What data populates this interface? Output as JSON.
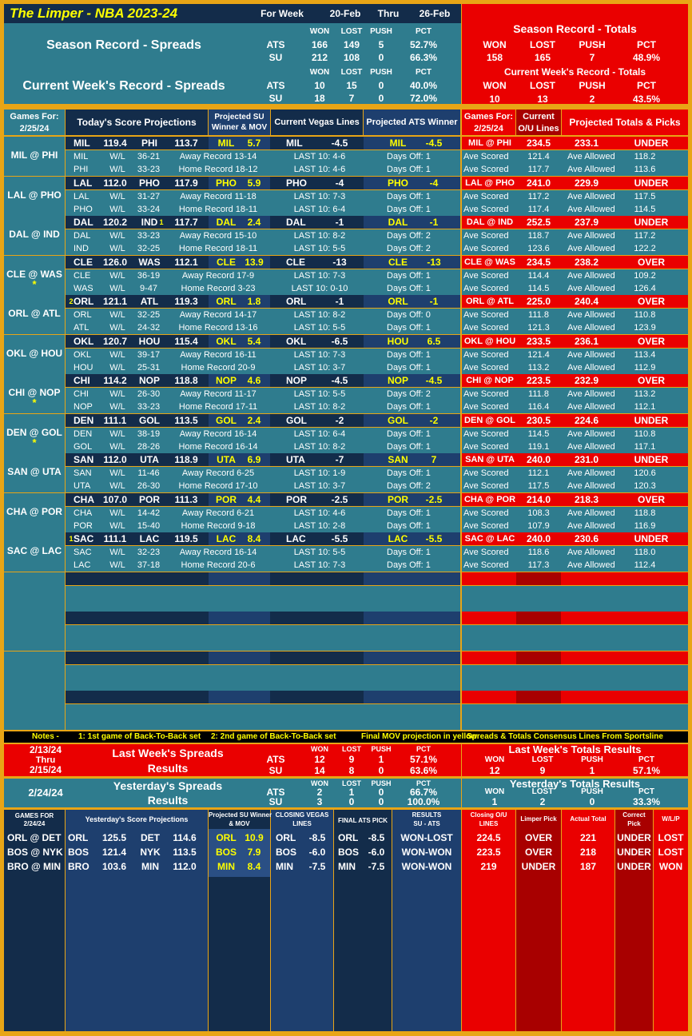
{
  "header": {
    "title": "The Limper - NBA 2023-24",
    "for_week": "For Week",
    "start": "20-Feb",
    "thru": "Thru",
    "end": "26-Feb"
  },
  "season": {
    "title": "Season Record - Spreads",
    "cols": [
      "WON",
      "LOST",
      "PUSH",
      "PCT"
    ],
    "ats": {
      "label": "ATS",
      "won": "166",
      "lost": "149",
      "push": "5",
      "pct": "52.7%"
    },
    "su": {
      "label": "SU",
      "won": "212",
      "lost": "108",
      "push": "0",
      "pct": "66.3%"
    }
  },
  "current_week": {
    "title": "Current Week's Record - Spreads",
    "cols": [
      "WON",
      "LOST",
      "PUSH",
      "PCT"
    ],
    "ats": {
      "label": "ATS",
      "won": "10",
      "lost": "15",
      "push": "0",
      "pct": "40.0%"
    },
    "su": {
      "label": "SU",
      "won": "18",
      "lost": "7",
      "push": "0",
      "pct": "72.0%"
    }
  },
  "season_totals": {
    "title": "Season Record - Totals",
    "cols": [
      "WON",
      "LOST",
      "PUSH",
      "PCT"
    ],
    "won": "158",
    "lost": "165",
    "push": "7",
    "pct": "48.9%"
  },
  "week_totals": {
    "title": "Current Week's Record - Totals",
    "cols": [
      "WON",
      "LOST",
      "PUSH",
      "PCT"
    ],
    "won": "10",
    "lost": "13",
    "push": "2",
    "pct": "43.5%"
  },
  "col_headers": {
    "games_for": "Games For:",
    "date": "2/25/24",
    "projections": "Today's Score Projections",
    "su_winner_1": "Projected SU",
    "su_winner_2": "Winner & MOV",
    "vegas": "Current Vegas Lines",
    "ats_winner": "Projected ATS Winner",
    "games_for2": "Games For:",
    "date2": "2/25/24",
    "ou_1": "Current",
    "ou_2": "O/U Lines",
    "totals": "Projected Totals & Picks"
  },
  "wl": "W/L",
  "ave_scored": "Ave Scored",
  "ave_allowed": "Ave Allowed",
  "games": [
    {
      "matchup": "MIL @ PHI",
      "star": "",
      "away": "MIL",
      "away_score": "119.4",
      "home": "PHI",
      "home_score": "113.7",
      "away_mark": "",
      "home_mark": "",
      "su_team": "MIL",
      "su_mov": "5.7",
      "vegas_team": "MIL",
      "vegas_line": "-4.5",
      "ats_team": "MIL",
      "ats_line": "-4.5",
      "ou_matchup": "MIL @ PHI",
      "ou_line": "234.5",
      "proj_total": "233.1",
      "pick": "UNDER",
      "away_wl": "36-21",
      "away_rec": "Away Record 13-14",
      "away_last10": "LAST 10: 4-6",
      "away_off": "Days Off: 1",
      "away_scored": "121.4",
      "away_allowed": "118.2",
      "home_wl": "33-23",
      "home_rec": "Home Record 18-12",
      "home_last10": "LAST 10: 4-6",
      "home_off": "Days Off: 1",
      "home_scored": "117.7",
      "home_allowed": "113.6"
    },
    {
      "matchup": "LAL @ PHO",
      "star": "",
      "away": "LAL",
      "away_score": "112.0",
      "home": "PHO",
      "home_score": "117.9",
      "away_mark": "",
      "home_mark": "",
      "su_team": "PHO",
      "su_mov": "5.9",
      "vegas_team": "PHO",
      "vegas_line": "-4",
      "ats_team": "PHO",
      "ats_line": "-4",
      "ou_matchup": "LAL @ PHO",
      "ou_line": "241.0",
      "proj_total": "229.9",
      "pick": "UNDER",
      "away_wl": "31-27",
      "away_rec": "Away Record 11-18",
      "away_last10": "LAST 10: 7-3",
      "away_off": "Days Off: 1",
      "away_scored": "117.2",
      "away_allowed": "117.5",
      "home_wl": "33-24",
      "home_rec": "Home Record 18-11",
      "home_last10": "LAST 10: 6-4",
      "home_off": "Days Off: 1",
      "home_scored": "117.4",
      "home_allowed": "114.5"
    },
    {
      "matchup": "DAL @ IND",
      "star": "",
      "away": "DAL",
      "away_score": "120.2",
      "home": "IND",
      "home_score": "117.7",
      "away_mark": "",
      "home_mark": "1",
      "su_team": "DAL",
      "su_mov": "2.4",
      "vegas_team": "DAL",
      "vegas_line": "-1",
      "ats_team": "DAL",
      "ats_line": "-1",
      "ou_matchup": "DAL @ IND",
      "ou_line": "252.5",
      "proj_total": "237.9",
      "pick": "UNDER",
      "away_wl": "33-23",
      "away_rec": "Away Record 15-10",
      "away_last10": "LAST 10: 8-2",
      "away_off": "Days Off: 2",
      "away_scored": "118.7",
      "away_allowed": "117.2",
      "home_wl": "32-25",
      "home_rec": "Home Record 18-11",
      "home_last10": "LAST 10: 5-5",
      "home_off": "Days Off: 2",
      "home_scored": "123.6",
      "home_allowed": "122.2"
    },
    {
      "matchup": "CLE @ WAS",
      "star": "*",
      "away": "CLE",
      "away_score": "126.0",
      "home": "WAS",
      "home_score": "112.1",
      "away_mark": "",
      "home_mark": "",
      "su_team": "CLE",
      "su_mov": "13.9",
      "vegas_team": "CLE",
      "vegas_line": "-13",
      "ats_team": "CLE",
      "ats_line": "-13",
      "ou_matchup": "CLE @ WAS",
      "ou_line": "234.5",
      "proj_total": "238.2",
      "pick": "OVER",
      "away_wl": "36-19",
      "away_rec": "Away Record 17-9",
      "away_last10": "LAST 10: 7-3",
      "away_off": "Days Off: 1",
      "away_scored": "114.4",
      "away_allowed": "109.2",
      "home_wl": "9-47",
      "home_rec": "Home Record 3-23",
      "home_last10": "LAST 10: 0-10",
      "home_off": "Days Off: 1",
      "home_scored": "114.5",
      "home_allowed": "126.4"
    },
    {
      "matchup": "ORL @ ATL",
      "star": "",
      "away": "ORL",
      "away_score": "121.1",
      "home": "ATL",
      "home_score": "119.3",
      "away_mark": "2",
      "home_mark": "",
      "su_team": "ORL",
      "su_mov": "1.8",
      "vegas_team": "ORL",
      "vegas_line": "-1",
      "ats_team": "ORL",
      "ats_line": "-1",
      "ou_matchup": "ORL @ ATL",
      "ou_line": "225.0",
      "proj_total": "240.4",
      "pick": "OVER",
      "away_wl": "32-25",
      "away_rec": "Away Record 14-17",
      "away_last10": "LAST 10: 8-2",
      "away_off": "Days Off: 0",
      "away_scored": "111.8",
      "away_allowed": "110.8",
      "home_wl": "24-32",
      "home_rec": "Home Record 13-16",
      "home_last10": "LAST 10: 5-5",
      "home_off": "Days Off: 1",
      "home_scored": "121.3",
      "home_allowed": "123.9"
    },
    {
      "matchup": "OKL @ HOU",
      "star": "",
      "away": "OKL",
      "away_score": "120.7",
      "home": "HOU",
      "home_score": "115.4",
      "away_mark": "",
      "home_mark": "",
      "su_team": "OKL",
      "su_mov": "5.4",
      "vegas_team": "OKL",
      "vegas_line": "-6.5",
      "ats_team": "HOU",
      "ats_line": "6.5",
      "ou_matchup": "OKL @ HOU",
      "ou_line": "233.5",
      "proj_total": "236.1",
      "pick": "OVER",
      "away_wl": "39-17",
      "away_rec": "Away Record 16-11",
      "away_last10": "LAST 10: 7-3",
      "away_off": "Days Off: 1",
      "away_scored": "121.4",
      "away_allowed": "113.4",
      "home_wl": "25-31",
      "home_rec": "Home Record 20-9",
      "home_last10": "LAST 10: 3-7",
      "home_off": "Days Off: 1",
      "home_scored": "113.2",
      "home_allowed": "112.9"
    },
    {
      "matchup": "CHI @ NOP",
      "star": "*",
      "away": "CHI",
      "away_score": "114.2",
      "home": "NOP",
      "home_score": "118.8",
      "away_mark": "",
      "home_mark": "",
      "su_team": "NOP",
      "su_mov": "4.6",
      "vegas_team": "NOP",
      "vegas_line": "-4.5",
      "ats_team": "NOP",
      "ats_line": "-4.5",
      "ou_matchup": "CHI @ NOP",
      "ou_line": "223.5",
      "proj_total": "232.9",
      "pick": "OVER",
      "away_wl": "26-30",
      "away_rec": "Away Record 11-17",
      "away_last10": "LAST 10: 5-5",
      "away_off": "Days Off: 2",
      "away_scored": "111.8",
      "away_allowed": "113.2",
      "home_wl": "33-23",
      "home_rec": "Home Record 17-11",
      "home_last10": "LAST 10: 8-2",
      "home_off": "Days Off: 1",
      "home_scored": "116.4",
      "home_allowed": "112.1"
    },
    {
      "matchup": "DEN @ GOL",
      "star": "*",
      "away": "DEN",
      "away_score": "111.1",
      "home": "GOL",
      "home_score": "113.5",
      "away_mark": "",
      "home_mark": "",
      "su_team": "GOL",
      "su_mov": "2.4",
      "vegas_team": "GOL",
      "vegas_line": "-2",
      "ats_team": "GOL",
      "ats_line": "-2",
      "ou_matchup": "DEN @ GOL",
      "ou_line": "230.5",
      "proj_total": "224.6",
      "pick": "UNDER",
      "away_wl": "38-19",
      "away_rec": "Away Record 16-14",
      "away_last10": "LAST 10: 6-4",
      "away_off": "Days Off: 1",
      "away_scored": "114.5",
      "away_allowed": "110.8",
      "home_wl": "28-26",
      "home_rec": "Home Record 16-14",
      "home_last10": "LAST 10: 8-2",
      "home_off": "Days Off: 1",
      "home_scored": "119.1",
      "home_allowed": "117.1"
    },
    {
      "matchup": "SAN @ UTA",
      "star": "",
      "away": "SAN",
      "away_score": "112.0",
      "home": "UTA",
      "home_score": "118.9",
      "away_mark": "",
      "home_mark": "",
      "su_team": "UTA",
      "su_mov": "6.9",
      "vegas_team": "UTA",
      "vegas_line": "-7",
      "ats_team": "SAN",
      "ats_line": "7",
      "ou_matchup": "SAN @ UTA",
      "ou_line": "240.0",
      "proj_total": "231.0",
      "pick": "UNDER",
      "away_wl": "11-46",
      "away_rec": "Away Record 6-25",
      "away_last10": "LAST 10: 1-9",
      "away_off": "Days Off: 1",
      "away_scored": "112.1",
      "away_allowed": "120.6",
      "home_wl": "26-30",
      "home_rec": "Home Record 17-10",
      "home_last10": "LAST 10: 3-7",
      "home_off": "Days Off: 2",
      "home_scored": "117.5",
      "home_allowed": "120.3"
    },
    {
      "matchup": "CHA @ POR",
      "star": "",
      "away": "CHA",
      "away_score": "107.0",
      "home": "POR",
      "home_score": "111.3",
      "away_mark": "",
      "home_mark": "",
      "su_team": "POR",
      "su_mov": "4.4",
      "vegas_team": "POR",
      "vegas_line": "-2.5",
      "ats_team": "POR",
      "ats_line": "-2.5",
      "ou_matchup": "CHA @ POR",
      "ou_line": "214.0",
      "proj_total": "218.3",
      "pick": "OVER",
      "away_wl": "14-42",
      "away_rec": "Away Record 6-21",
      "away_last10": "LAST 10: 4-6",
      "away_off": "Days Off: 1",
      "away_scored": "108.3",
      "away_allowed": "118.8",
      "home_wl": "15-40",
      "home_rec": "Home Record 9-18",
      "home_last10": "LAST 10: 2-8",
      "home_off": "Days Off: 1",
      "home_scored": "107.9",
      "home_allowed": "116.9"
    },
    {
      "matchup": "SAC @ LAC",
      "star": "",
      "away": "SAC",
      "away_score": "111.1",
      "home": "LAC",
      "home_score": "119.5",
      "away_mark": "1",
      "home_mark": "",
      "su_team": "LAC",
      "su_mov": "8.4",
      "vegas_team": "LAC",
      "vegas_line": "-5.5",
      "ats_team": "LAC",
      "ats_line": "-5.5",
      "ou_matchup": "SAC @ LAC",
      "ou_line": "240.0",
      "proj_total": "230.6",
      "pick": "UNDER",
      "away_wl": "32-23",
      "away_rec": "Away Record 16-14",
      "away_last10": "LAST 10: 5-5",
      "away_off": "Days Off: 1",
      "away_scored": "118.6",
      "away_allowed": "118.0",
      "home_wl": "37-18",
      "home_rec": "Home Record 20-6",
      "home_last10": "LAST 10: 7-3",
      "home_off": "Days Off: 1",
      "home_scored": "117.3",
      "home_allowed": "112.4"
    }
  ],
  "notes": {
    "label": "Notes -",
    "n1": "1: 1st game of Back-To-Back set",
    "n2": "2: 2nd game of Back-To-Back set",
    "n3": "Final MOV projection in yellow",
    "n4": "Spreads & Totals Consensus Lines From Sportsline"
  },
  "last_week": {
    "d1": "2/13/24",
    "thru": "Thru",
    "d2": "2/15/24",
    "title": "Last Week's Spreads",
    "results": "Results",
    "cols": [
      "WON",
      "LOST",
      "PUSH",
      "PCT"
    ],
    "ats": {
      "label": "ATS",
      "won": "12",
      "lost": "9",
      "push": "1",
      "pct": "57.1%"
    },
    "su": {
      "label": "SU",
      "won": "14",
      "lost": "8",
      "push": "0",
      "pct": "63.6%"
    },
    "totals_title": "Last Week's Totals Results",
    "t_won": "12",
    "t_lost": "9",
    "t_push": "1",
    "t_pct": "57.1%"
  },
  "yesterday": {
    "date": "2/24/24",
    "title": "Yesterday's Spreads",
    "results": "Results",
    "cols": [
      "WON",
      "LOST",
      "PUSH",
      "PCT"
    ],
    "ats": {
      "label": "ATS",
      "won": "2",
      "lost": "1",
      "push": "0",
      "pct": "66.7%"
    },
    "su": {
      "label": "SU",
      "won": "3",
      "lost": "0",
      "push": "0",
      "pct": "100.0%"
    },
    "totals_title": "Yesterday's Totals Results",
    "t_won": "1",
    "t_lost": "2",
    "t_push": "0",
    "t_pct": "33.3%"
  },
  "yh": {
    "games_for": "GAMES FOR",
    "date": "2/24/24",
    "proj": "Yesterday's Score Projections",
    "su1": "Projected SU Winner",
    "su2": "& MOV",
    "cl1": "CLOSING VEGAS",
    "cl2": "LINES",
    "fin": "FINAL ATS PICK",
    "res1": "RESULTS",
    "res2": "SU - ATS",
    "ou1": "Closing O/U",
    "ou2": "LINES",
    "lp": "Limper Pick",
    "at": "Actual Total",
    "cp1": "Correct",
    "cp2": "Pick",
    "wlp": "W/L/P"
  },
  "ygames": [
    {
      "matchup": "ORL @ DET",
      "away": "ORL",
      "away_score": "125.5",
      "home": "DET",
      "home_score": "114.6",
      "su_team": "ORL",
      "su_mov": "10.9",
      "cl_team": "ORL",
      "cl_line": "-8.5",
      "fin_team": "ORL",
      "fin_line": "-8.5",
      "result": "WON-LOST",
      "ou": "224.5",
      "pick": "OVER",
      "actual": "221",
      "correct": "UNDER",
      "wlp": "LOST"
    },
    {
      "matchup": "BOS @ NYK",
      "away": "BOS",
      "away_score": "121.4",
      "home": "NYK",
      "home_score": "113.5",
      "su_team": "BOS",
      "su_mov": "7.9",
      "cl_team": "BOS",
      "cl_line": "-6.0",
      "fin_team": "BOS",
      "fin_line": "-6.0",
      "result": "WON-WON",
      "ou": "223.5",
      "pick": "OVER",
      "actual": "218",
      "correct": "UNDER",
      "wlp": "LOST"
    },
    {
      "matchup": "BRO @ MIN",
      "away": "BRO",
      "away_score": "103.6",
      "home": "MIN",
      "home_score": "112.0",
      "su_team": "MIN",
      "su_mov": "8.4",
      "cl_team": "MIN",
      "cl_line": "-7.5",
      "fin_team": "MIN",
      "fin_line": "-7.5",
      "result": "WON-WON",
      "ou": "219",
      "pick": "UNDER",
      "actual": "187",
      "correct": "UNDER",
      "wlp": "WON"
    }
  ],
  "colors": {
    "teal": "#2f7c8e",
    "navy": "#132c4a",
    "blue": "#1e3f6e",
    "red": "#ea0000",
    "gold": "#e8a516",
    "yellow": "#ffff00"
  }
}
